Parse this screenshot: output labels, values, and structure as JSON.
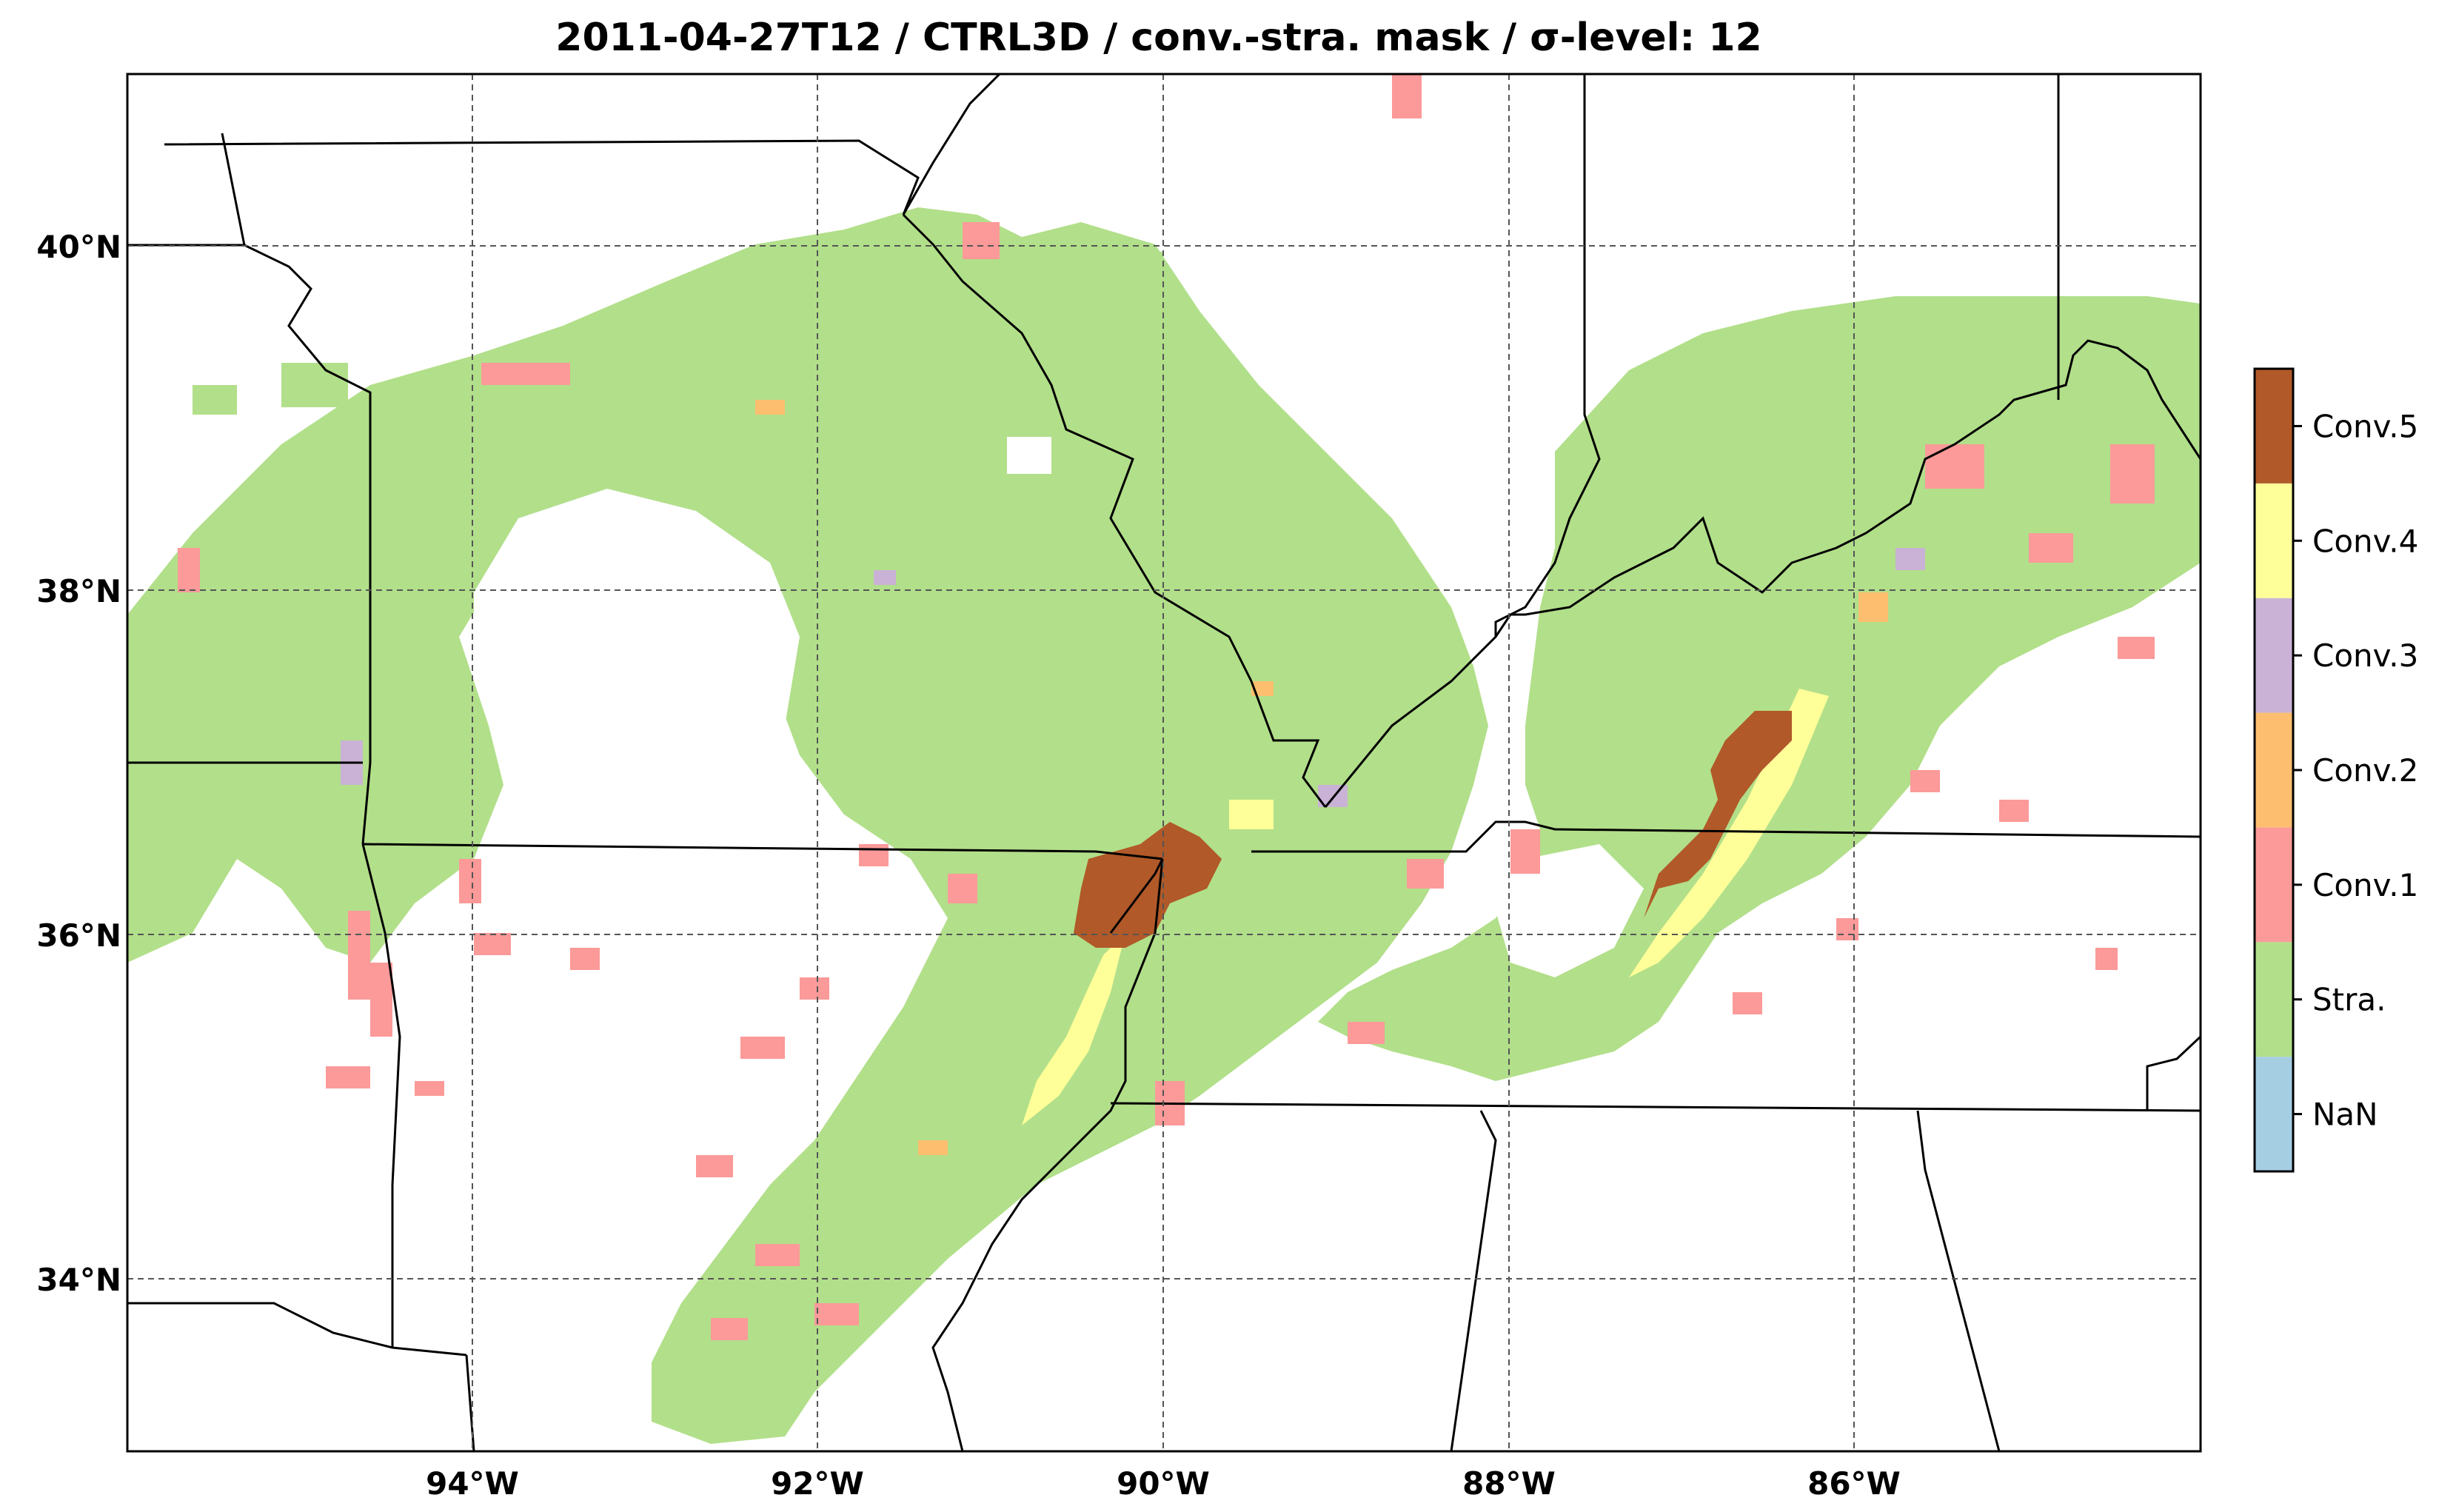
{
  "title": "2011-04-27T12 / CTRL3D / conv.-stra. mask / σ-level: 12",
  "map": {
    "lon_range": [
      -96,
      -84
    ],
    "lat_range": [
      33,
      41
    ],
    "x_ticks": [
      {
        "value": -94,
        "label": "94°W"
      },
      {
        "value": -92,
        "label": "92°W"
      },
      {
        "value": -90,
        "label": "90°W"
      },
      {
        "value": -88,
        "label": "88°W"
      },
      {
        "value": -86,
        "label": "86°W"
      }
    ],
    "y_ticks": [
      {
        "value": 40,
        "label": "40°N"
      },
      {
        "value": 38,
        "label": "38°N"
      },
      {
        "value": 36,
        "label": "36°N"
      },
      {
        "value": 34,
        "label": "34°N"
      }
    ],
    "gridlines": "dashed"
  },
  "colorbar": {
    "classes": [
      {
        "label": "NaN",
        "color": "#a6cee3"
      },
      {
        "label": "Stra.",
        "color": "#b2df8a"
      },
      {
        "label": "Conv.1",
        "color": "#fb9a99"
      },
      {
        "label": "Conv.2",
        "color": "#fdbf6f"
      },
      {
        "label": "Conv.3",
        "color": "#cab2d6"
      },
      {
        "label": "Conv.4",
        "color": "#ffff99"
      },
      {
        "label": "Conv.5",
        "color": "#b15928"
      }
    ]
  },
  "colors": {
    "stra": "#b2df8a",
    "conv1": "#fb9a99",
    "conv2": "#fdbf6f",
    "conv3": "#cab2d6",
    "conv4": "#ffff99",
    "conv5": "#b15928"
  }
}
